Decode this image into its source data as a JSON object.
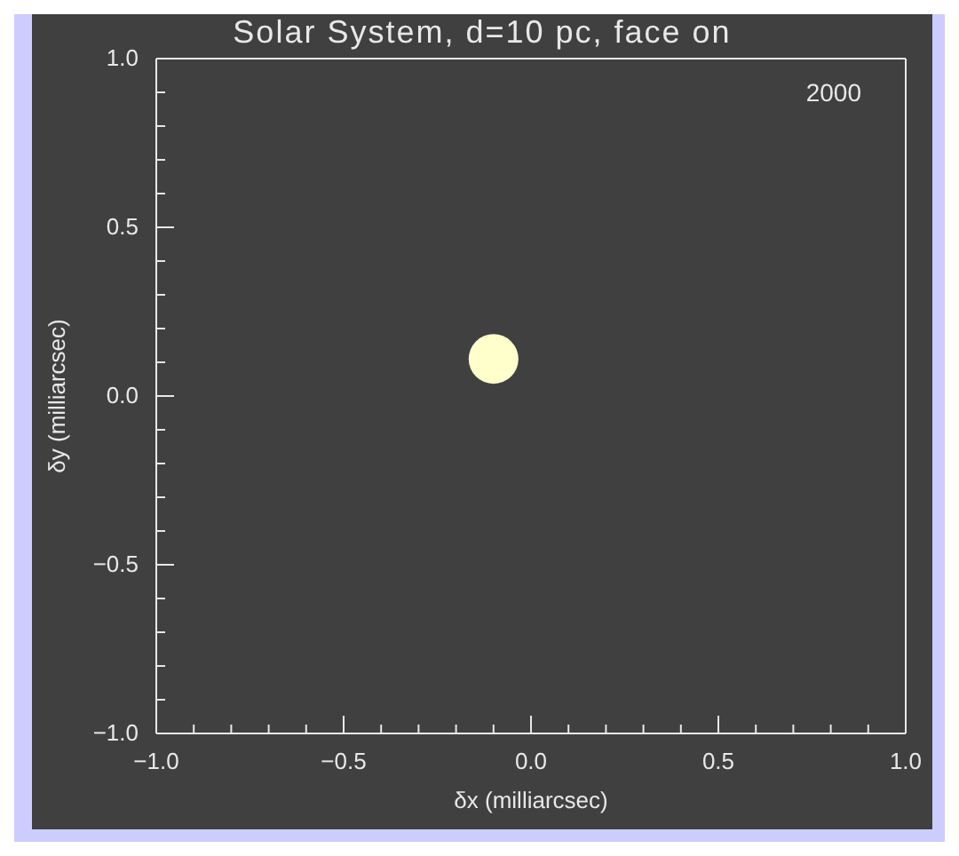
{
  "chart_data": {
    "type": "scatter",
    "title": "Solar System, d=10 pc, face on",
    "xlabel": "δx (milliarcsec)",
    "ylabel": "δy (milliarcsec)",
    "x": [
      -0.1
    ],
    "values": [
      0.11
    ],
    "color": "#ffffcc",
    "marker": "circle",
    "xlim": [
      -1,
      1
    ],
    "ylim": [
      -1,
      1
    ],
    "xticks": [
      {
        "value": -1,
        "label": "−1.0"
      },
      {
        "value": -0.9,
        "label": null
      },
      {
        "value": -0.8,
        "label": null
      },
      {
        "value": -0.7,
        "label": null
      },
      {
        "value": -0.6,
        "label": null
      },
      {
        "value": -0.5,
        "label": "−0.5"
      },
      {
        "value": -0.4,
        "label": null
      },
      {
        "value": -0.3,
        "label": null
      },
      {
        "value": -0.2,
        "label": null
      },
      {
        "value": -0.1,
        "label": null
      },
      {
        "value": 0,
        "label": "0.0"
      },
      {
        "value": 0.1,
        "label": null
      },
      {
        "value": 0.2,
        "label": null
      },
      {
        "value": 0.3,
        "label": null
      },
      {
        "value": 0.4,
        "label": null
      },
      {
        "value": 0.5,
        "label": "0.5"
      },
      {
        "value": 0.6,
        "label": null
      },
      {
        "value": 0.7,
        "label": null
      },
      {
        "value": 0.8,
        "label": null
      },
      {
        "value": 0.9,
        "label": null
      },
      {
        "value": 1,
        "label": "1.0"
      }
    ],
    "yticks": [
      {
        "value": -1,
        "label": "−1.0"
      },
      {
        "value": -0.9,
        "label": null
      },
      {
        "value": -0.8,
        "label": null
      },
      {
        "value": -0.7,
        "label": null
      },
      {
        "value": -0.6,
        "label": null
      },
      {
        "value": -0.5,
        "label": "−0.5"
      },
      {
        "value": -0.4,
        "label": null
      },
      {
        "value": -0.3,
        "label": null
      },
      {
        "value": -0.2,
        "label": null
      },
      {
        "value": -0.1,
        "label": null
      },
      {
        "value": 0,
        "label": "0.0"
      },
      {
        "value": 0.1,
        "label": null
      },
      {
        "value": 0.2,
        "label": null
      },
      {
        "value": 0.3,
        "label": null
      },
      {
        "value": 0.4,
        "label": null
      },
      {
        "value": 0.5,
        "label": "0.5"
      },
      {
        "value": 0.6,
        "label": null
      },
      {
        "value": 0.7,
        "label": null
      },
      {
        "value": 0.8,
        "label": null
      },
      {
        "value": 0.9,
        "label": null
      },
      {
        "value": 1,
        "label": "1.0"
      }
    ],
    "annotations": [
      "2000"
    ]
  }
}
